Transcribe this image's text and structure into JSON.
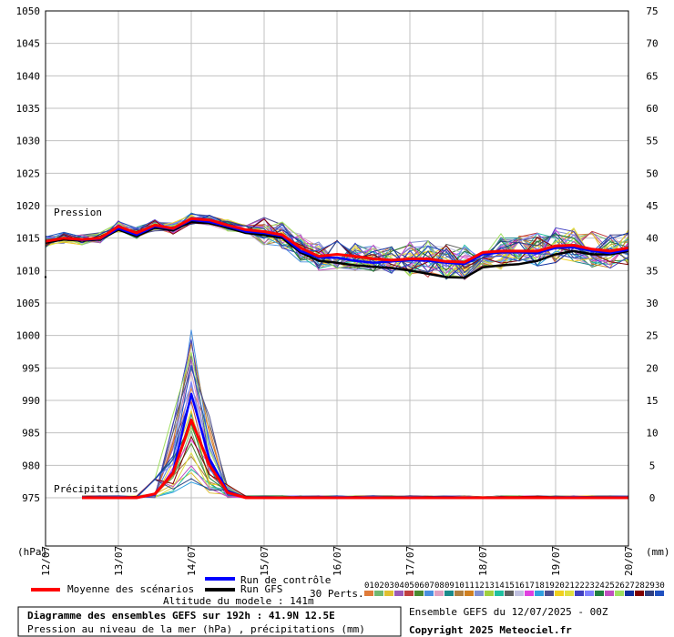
{
  "chart_data": {
    "type": "line",
    "title": "Diagramme des ensembles GEFS sur 192h : 41.9N 12.5E",
    "subtitle": "Pression au niveau de la mer (hPa) , précipitations (mm)",
    "left_unit": "(hPa)",
    "right_unit": "(mm)",
    "pressure_label": "Pression",
    "precip_label": "Précipitations",
    "x_ticks": [
      "12/07",
      "13/07",
      "14/07",
      "15/07",
      "16/07",
      "17/07",
      "18/07",
      "19/07",
      "20/07"
    ],
    "left_ticks": [
      1050,
      1045,
      1040,
      1035,
      1030,
      1025,
      1020,
      1015,
      1010,
      1005,
      1000,
      995,
      990,
      985,
      980,
      975
    ],
    "right_ticks": [
      75,
      70,
      65,
      60,
      55,
      50,
      45,
      40,
      35,
      30,
      25,
      20,
      15,
      10,
      5,
      0
    ],
    "ylim_pressure": [
      975,
      1050
    ],
    "ylim_precip": [
      0,
      75
    ],
    "x_range_hours": [
      0,
      192
    ],
    "step_hours": 6,
    "legend": {
      "mean": "Moyenne des scénarios",
      "control": "Run de contrôle",
      "gfs": "Run GFS",
      "perts": "30 Perts.",
      "pert_ids": [
        "01",
        "02",
        "03",
        "04",
        "05",
        "06",
        "07",
        "08",
        "09",
        "10",
        "11",
        "12",
        "13",
        "14",
        "15",
        "16",
        "17",
        "18",
        "19",
        "20",
        "21",
        "22",
        "23",
        "24",
        "25",
        "26",
        "27",
        "28",
        "29",
        "30"
      ]
    },
    "altitude": "Altitude du modele : 141m",
    "ensemble_info": "Ensemble GEFS du 12/07/2025 - 00Z",
    "copyright": "Copyright 2025 Meteociel.fr",
    "series": [
      {
        "name": "Moyenne des scénarios",
        "color": "#ff0000",
        "pressure": [
          1014.5,
          1015,
          1014.8,
          1015,
          1016.8,
          1015.8,
          1017,
          1016.5,
          1018,
          1017.8,
          1017,
          1016.3,
          1016,
          1015.5,
          1013.5,
          1012.2,
          1012.5,
          1012.2,
          1011.8,
          1011.6,
          1011.8,
          1011.8,
          1011.4,
          1011.3,
          1012.8,
          1013,
          1013,
          1013,
          1013.8,
          1013.9,
          1013.3,
          1013,
          1013.5
        ],
        "precip": [
          null,
          null,
          0,
          0,
          0,
          0,
          0.6,
          3.8,
          12,
          5,
          0.8,
          0,
          0,
          0,
          0,
          0,
          0,
          0,
          0,
          0,
          0,
          0,
          0,
          0,
          0,
          0,
          0,
          0,
          0,
          0,
          0,
          0,
          0
        ]
      },
      {
        "name": "Run de contrôle",
        "color": "#0000ff",
        "pressure": [
          1014.5,
          1015,
          1014.7,
          1014.9,
          1016.5,
          1015.5,
          1016.8,
          1016.4,
          1017.8,
          1017.5,
          1016.8,
          1016,
          1015.8,
          1015.3,
          1013,
          1012,
          1012,
          1011.5,
          1011.2,
          1011.4,
          1011.6,
          1011.5,
          1011.2,
          1011,
          1012.5,
          1012.8,
          1012.8,
          1012.7,
          1013.5,
          1013.6,
          1013,
          1012.7,
          1013.2
        ],
        "precip": [
          null,
          null,
          0,
          0,
          0,
          0,
          0.5,
          4,
          16,
          6,
          1,
          0,
          0,
          0,
          0,
          0,
          0,
          0,
          0,
          0,
          0,
          0,
          0,
          0,
          0,
          0,
          0,
          0,
          0,
          0,
          0,
          0,
          0
        ]
      },
      {
        "name": "Run GFS",
        "color": "#000000",
        "pressure": [
          1014.3,
          1014.8,
          1014.6,
          1014.8,
          1016.3,
          1015.3,
          1016.6,
          1016.2,
          1017.5,
          1017.3,
          1016.6,
          1015.8,
          1015.5,
          1015,
          1012.8,
          1011.5,
          1011.2,
          1010.8,
          1010.6,
          1010.4,
          1010,
          1009.5,
          1009,
          1008.9,
          1010.5,
          1010.8,
          1011,
          1011.5,
          1012.5,
          1013,
          1012.5,
          1012.5,
          1013
        ]
      }
    ]
  }
}
